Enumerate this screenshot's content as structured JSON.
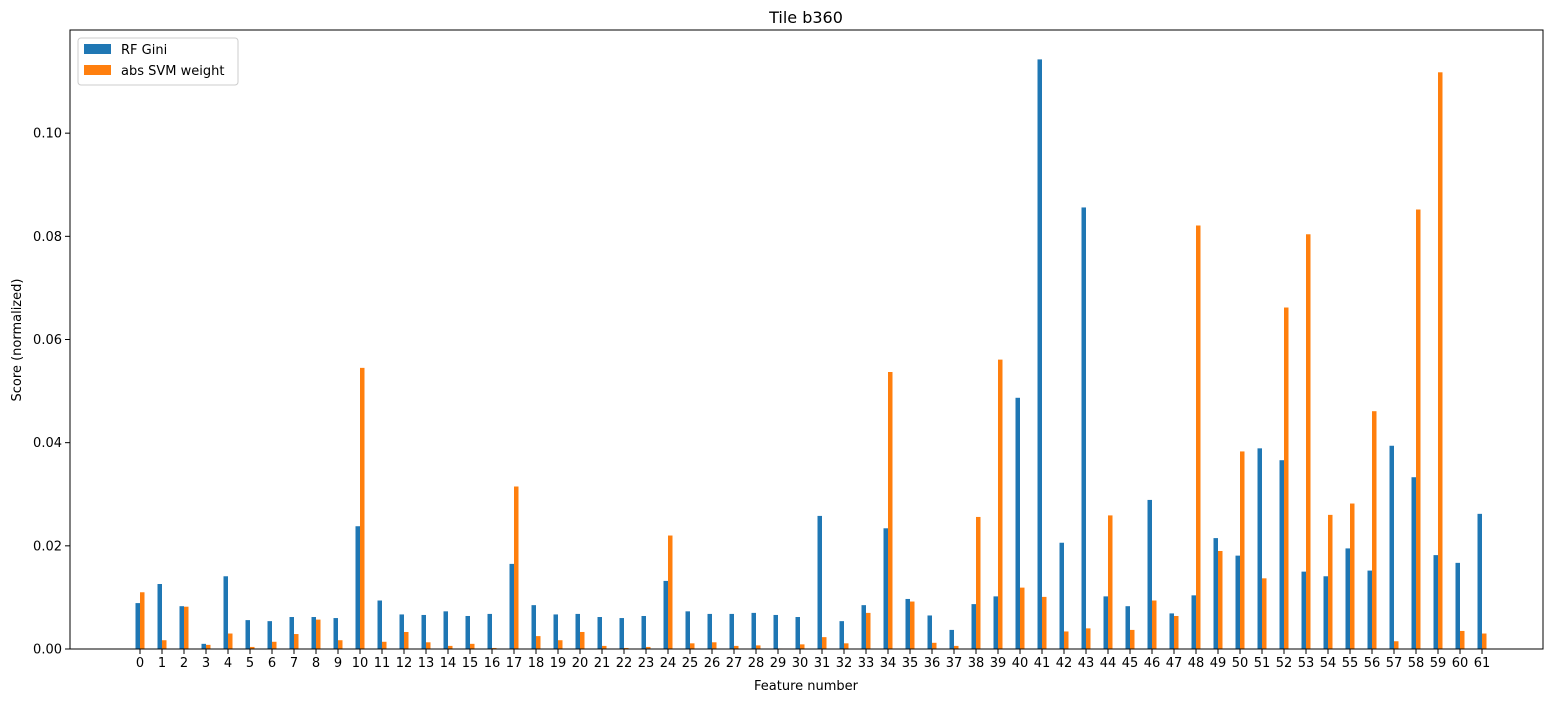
{
  "chart_data": {
    "type": "bar",
    "title": "Tile b360",
    "xlabel": "Feature number",
    "ylabel": "Score (normalized)",
    "ylim": [
      0,
      0.12
    ],
    "yticks": [
      "0.00",
      "0.02",
      "0.04",
      "0.06",
      "0.08",
      "0.10"
    ],
    "categories": [
      "0",
      "1",
      "2",
      "3",
      "4",
      "5",
      "6",
      "7",
      "8",
      "9",
      "10",
      "11",
      "12",
      "13",
      "14",
      "15",
      "16",
      "17",
      "18",
      "19",
      "20",
      "21",
      "22",
      "23",
      "24",
      "25",
      "26",
      "27",
      "28",
      "29",
      "30",
      "31",
      "32",
      "33",
      "34",
      "35",
      "36",
      "37",
      "38",
      "39",
      "40",
      "41",
      "42",
      "43",
      "44",
      "45",
      "46",
      "47",
      "48",
      "49",
      "50",
      "51",
      "52",
      "53",
      "54",
      "55",
      "56",
      "57",
      "58",
      "59",
      "60",
      "61"
    ],
    "legend_position": "top-left",
    "grid": false,
    "series": [
      {
        "name": "RF Gini",
        "color": "#1f77b4",
        "values": [
          0.0089,
          0.0126,
          0.0083,
          0.001,
          0.0141,
          0.0056,
          0.0054,
          0.0062,
          0.0062,
          0.006,
          0.0238,
          0.0094,
          0.0067,
          0.0066,
          0.0073,
          0.0064,
          0.0068,
          0.0165,
          0.0085,
          0.0067,
          0.0068,
          0.0062,
          0.006,
          0.0064,
          0.0132,
          0.0073,
          0.0068,
          0.0068,
          0.007,
          0.0066,
          0.0062,
          0.0258,
          0.0054,
          0.0085,
          0.0234,
          0.0097,
          0.0065,
          0.0037,
          0.0087,
          0.0102,
          0.0487,
          0.1143,
          0.0206,
          0.0856,
          0.0102,
          0.0083,
          0.0289,
          0.0069,
          0.0104,
          0.0215,
          0.0181,
          0.0389,
          0.0366,
          0.015,
          0.0141,
          0.0195,
          0.0152,
          0.0394,
          0.0333,
          0.0182,
          0.0167,
          0.0262
        ]
      },
      {
        "name": "abs SVM weight",
        "color": "#ff7f0e",
        "values": [
          0.011,
          0.0017,
          0.0082,
          0.0008,
          0.003,
          0.0004,
          0.0014,
          0.0029,
          0.0057,
          0.0017,
          0.0545,
          0.0014,
          0.0033,
          0.0013,
          0.0006,
          0.001,
          0.0002,
          0.0315,
          0.0025,
          0.0017,
          0.0033,
          0.0006,
          0.0002,
          0.0004,
          0.022,
          0.0011,
          0.0013,
          0.0006,
          0.0007,
          0.0001,
          0.0009,
          0.0023,
          0.0011,
          0.007,
          0.0537,
          0.0092,
          0.0012,
          0.0006,
          0.0256,
          0.0561,
          0.0119,
          0.0101,
          0.0034,
          0.004,
          0.0259,
          0.0037,
          0.0094,
          0.0064,
          0.0821,
          0.019,
          0.0383,
          0.0137,
          0.0662,
          0.0804,
          0.026,
          0.0282,
          0.0461,
          0.0015,
          0.0852,
          0.1118,
          0.0035,
          0.003
        ]
      }
    ]
  }
}
